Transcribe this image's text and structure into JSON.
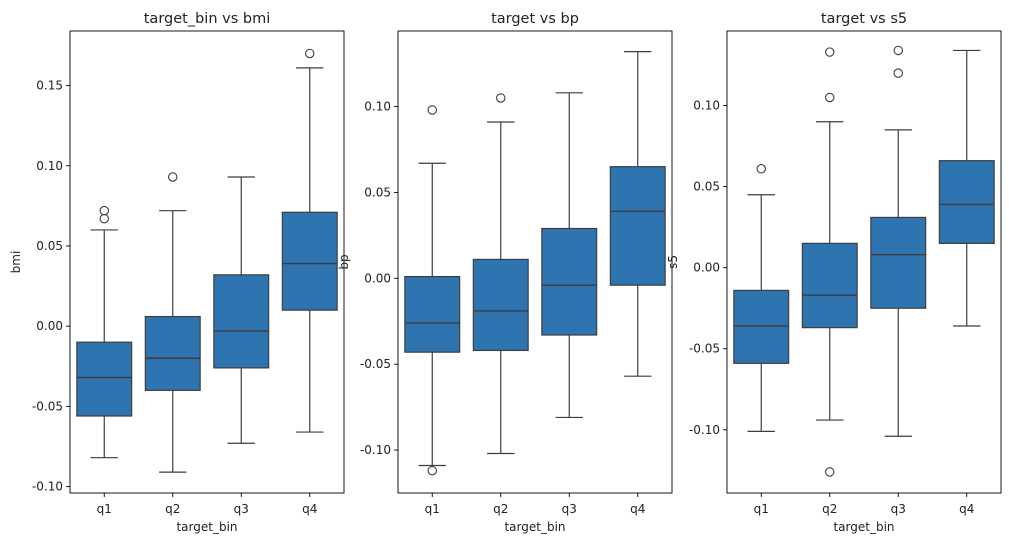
{
  "chart_data": [
    {
      "type": "box",
      "title": "target_bin vs bmi",
      "xlabel": "target_bin",
      "ylabel": "bmi",
      "categories": [
        "q1",
        "q2",
        "q3",
        "q4"
      ],
      "ylim": [
        -0.104,
        0.184
      ],
      "yticks": [
        -0.1,
        -0.05,
        0.0,
        0.05,
        0.1,
        0.15
      ],
      "ytick_labels": [
        "-0.10",
        "-0.05",
        "0.00",
        "0.05",
        "0.10",
        "0.15"
      ],
      "box_color": "#2e74b0",
      "boxes": [
        {
          "category": "q1",
          "whisker_low": -0.082,
          "q1": -0.056,
          "median": -0.032,
          "q3": -0.01,
          "whisker_high": 0.06,
          "outliers": [
            0.067,
            0.072
          ]
        },
        {
          "category": "q2",
          "whisker_low": -0.091,
          "q1": -0.04,
          "median": -0.02,
          "q3": 0.006,
          "whisker_high": 0.072,
          "outliers": [
            0.093
          ]
        },
        {
          "category": "q3",
          "whisker_low": -0.073,
          "q1": -0.026,
          "median": -0.003,
          "q3": 0.032,
          "whisker_high": 0.093,
          "outliers": []
        },
        {
          "category": "q4",
          "whisker_low": -0.066,
          "q1": 0.01,
          "median": 0.039,
          "q3": 0.071,
          "whisker_high": 0.161,
          "outliers": [
            0.17
          ]
        }
      ]
    },
    {
      "type": "box",
      "title": "target vs bp",
      "xlabel": "target_bin",
      "ylabel": "bp",
      "categories": [
        "q1",
        "q2",
        "q3",
        "q4"
      ],
      "ylim": [
        -0.125,
        0.144
      ],
      "yticks": [
        -0.1,
        -0.05,
        0.0,
        0.05,
        0.1
      ],
      "ytick_labels": [
        "-0.10",
        "-0.05",
        "0.00",
        "0.05",
        "0.10"
      ],
      "box_color": "#2e74b0",
      "boxes": [
        {
          "category": "q1",
          "whisker_low": -0.109,
          "q1": -0.043,
          "median": -0.026,
          "q3": 0.001,
          "whisker_high": 0.067,
          "outliers": [
            0.098,
            -0.112
          ]
        },
        {
          "category": "q2",
          "whisker_low": -0.102,
          "q1": -0.042,
          "median": -0.019,
          "q3": 0.011,
          "whisker_high": 0.091,
          "outliers": [
            0.105
          ]
        },
        {
          "category": "q3",
          "whisker_low": -0.081,
          "q1": -0.033,
          "median": -0.004,
          "q3": 0.029,
          "whisker_high": 0.108,
          "outliers": []
        },
        {
          "category": "q4",
          "whisker_low": -0.057,
          "q1": -0.004,
          "median": 0.039,
          "q3": 0.065,
          "whisker_high": 0.132,
          "outliers": []
        }
      ]
    },
    {
      "type": "box",
      "title": "target vs s5",
      "xlabel": "target_bin",
      "ylabel": "s5",
      "categories": [
        "q1",
        "q2",
        "q3",
        "q4"
      ],
      "ylim": [
        -0.139,
        0.146
      ],
      "yticks": [
        -0.1,
        -0.05,
        0.0,
        0.05,
        0.1
      ],
      "ytick_labels": [
        "-0.10",
        "-0.05",
        "0.00",
        "0.05",
        "0.10"
      ],
      "box_color": "#2e74b0",
      "boxes": [
        {
          "category": "q1",
          "whisker_low": -0.101,
          "q1": -0.059,
          "median": -0.036,
          "q3": -0.014,
          "whisker_high": 0.045,
          "outliers": [
            0.061
          ]
        },
        {
          "category": "q2",
          "whisker_low": -0.094,
          "q1": -0.037,
          "median": -0.017,
          "q3": 0.015,
          "whisker_high": 0.09,
          "outliers": [
            0.105,
            0.133,
            -0.126
          ]
        },
        {
          "category": "q3",
          "whisker_low": -0.104,
          "q1": -0.025,
          "median": 0.008,
          "q3": 0.031,
          "whisker_high": 0.085,
          "outliers": [
            0.12,
            0.134
          ]
        },
        {
          "category": "q4",
          "whisker_low": -0.036,
          "q1": 0.015,
          "median": 0.039,
          "q3": 0.066,
          "whisker_high": 0.134,
          "outliers": []
        }
      ]
    }
  ]
}
